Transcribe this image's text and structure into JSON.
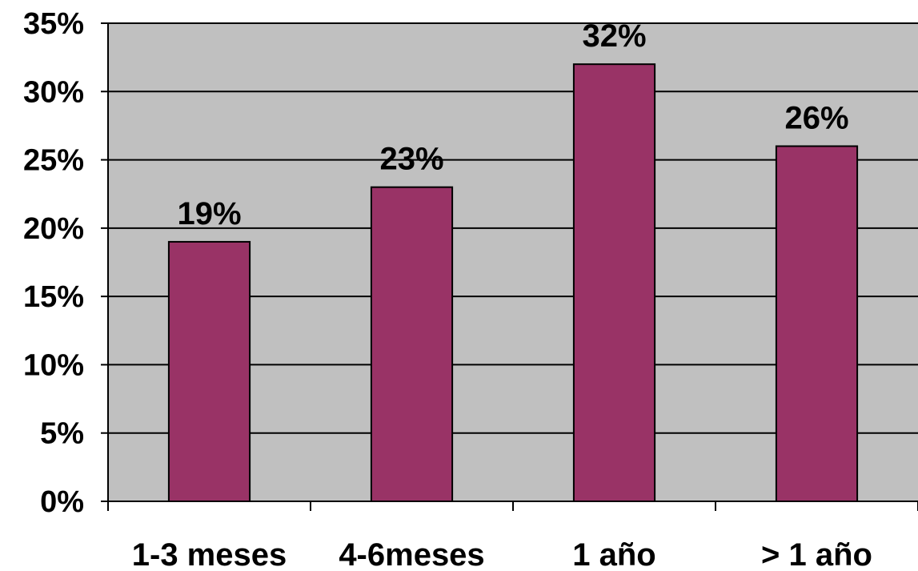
{
  "chart_data": {
    "type": "bar",
    "categories": [
      "1-3 meses",
      "4-6meses",
      "1 año",
      "> 1 año"
    ],
    "values": [
      19,
      23,
      32,
      26
    ],
    "data_labels": [
      "19%",
      "23%",
      "32%",
      "26%"
    ],
    "y_ticks": [
      0,
      5,
      10,
      15,
      20,
      25,
      30,
      35
    ],
    "y_tick_labels": [
      "0%",
      "5%",
      "10%",
      "15%",
      "20%",
      "25%",
      "30%",
      "35%"
    ],
    "ylim": [
      0,
      35
    ],
    "grid": true,
    "legend": "none",
    "colors": {
      "bar": "#993366",
      "plot_background": "#C0C0C0",
      "gridline": "#000000",
      "text": "#000000"
    }
  }
}
